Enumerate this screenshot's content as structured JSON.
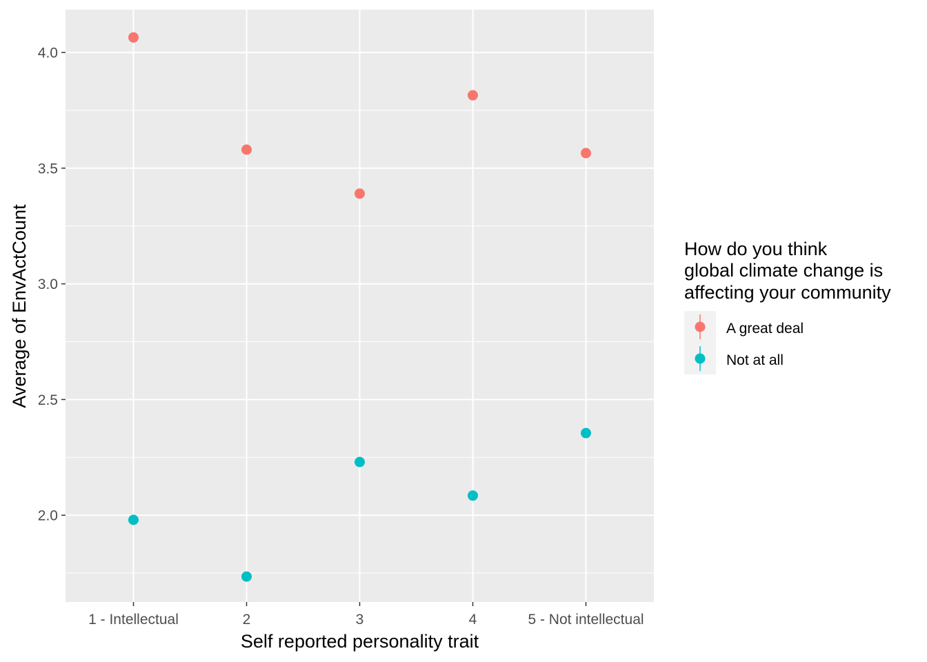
{
  "chart_data": {
    "type": "scatter",
    "title": "",
    "xlabel": "Self reported personality trait",
    "ylabel": "Average of EnvActCount",
    "categories": [
      "1 - Intellectual",
      "2",
      "3",
      "4",
      "5 - Not intellectual"
    ],
    "ylim": [
      1.625,
      4.185
    ],
    "yticks": [
      2.0,
      2.5,
      3.0,
      3.5,
      4.0
    ],
    "ytick_labels": [
      "2.0",
      "2.5",
      "3.0",
      "3.5",
      "4.0"
    ],
    "grid": true,
    "legend": {
      "title_lines": [
        "How do you think",
        "global climate change is",
        "affecting your community"
      ],
      "position": "right"
    },
    "series": [
      {
        "name": "A great deal",
        "color": "#F8766D",
        "values": [
          4.065,
          3.58,
          3.39,
          3.815,
          3.565
        ]
      },
      {
        "name": "Not at all",
        "color": "#00BFC4",
        "values": [
          1.98,
          1.735,
          2.23,
          2.085,
          2.355
        ]
      }
    ]
  }
}
